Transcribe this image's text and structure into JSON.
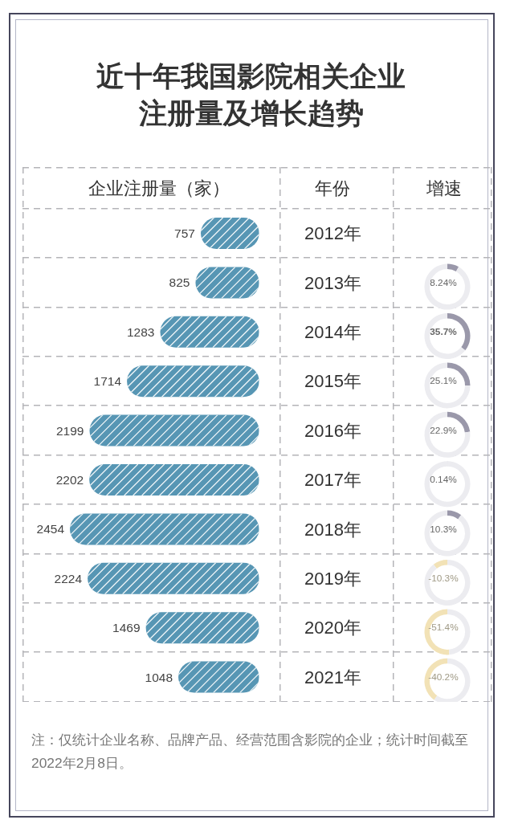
{
  "chart_data": [
    {
      "type": "bar",
      "orientation": "horizontal",
      "title": "近十年我国影院相关企业注册量及增长趋势",
      "xlabel": "企业注册量（家）",
      "ylabel": "年份",
      "categories": [
        "2012年",
        "2013年",
        "2014年",
        "2015年",
        "2016年",
        "2017年",
        "2018年",
        "2019年",
        "2020年",
        "2021年"
      ],
      "values": [
        757,
        825,
        1283,
        1714,
        2199,
        2202,
        2454,
        2224,
        1469,
        1048
      ],
      "color": "#5796b4",
      "data_labels": true,
      "tick_labels": "y",
      "annotations": [
        "注：仅统计企业名称、品牌产品、经营范围含影院的企业；统计时间截至2022年2月8日。"
      ]
    },
    {
      "type": "other",
      "title": "增速",
      "values": [
        null,
        8.24,
        35.7,
        25.1,
        22.9,
        0.14,
        10.3,
        -10.3,
        -51.4,
        -40.2
      ],
      "value_labels": [
        null,
        "8.24%",
        "35.7%",
        "25.1%",
        "22.9%",
        "0.14%",
        "10.3%",
        "-10.3%",
        "-51.4%",
        "-40.2%"
      ],
      "colors": [
        null,
        "#9a98aa",
        "#9a98aa",
        "#9a98aa",
        "#9a98aa",
        "#9a98aa",
        "#9a98aa",
        "#f2e2b6",
        "#f2e2b6",
        "#f2e2b6"
      ]
    }
  ]
}
